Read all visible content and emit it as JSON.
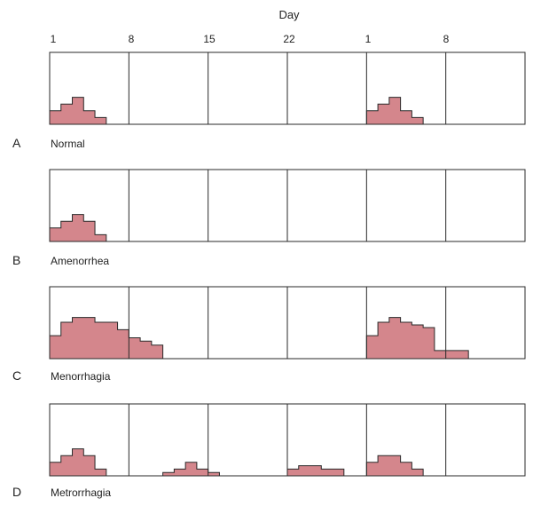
{
  "header": {
    "title": "Day",
    "ticks": [
      "1",
      "8",
      "15",
      "22",
      "1",
      "8"
    ]
  },
  "colors": {
    "fill": "#d4868c",
    "stroke": "#2a2a2a",
    "text": "#222222"
  },
  "units_per_week": 7,
  "panels": [
    {
      "letter": "A",
      "label": "Normal",
      "levels": [
        {
          "start": 0,
          "values": [
            2,
            3,
            4,
            2,
            1
          ]
        },
        {
          "start": 28,
          "values": [
            2,
            3,
            4,
            2,
            1
          ]
        }
      ]
    },
    {
      "letter": "B",
      "label": "Amenorrhea",
      "levels": [
        {
          "start": 0,
          "values": [
            2,
            3,
            4,
            3,
            1
          ]
        }
      ]
    },
    {
      "letter": "C",
      "label": "Menorrhagia",
      "levels": [
        {
          "start": 0,
          "values": [
            3.4,
            5.4,
            6.1,
            6.1,
            5.4,
            5.4,
            4.3,
            3.1,
            2.6,
            2.0
          ]
        },
        {
          "start": 28,
          "values": [
            3.4,
            5.4,
            6.1,
            5.4,
            5.0,
            4.6,
            1.2,
            1.2,
            1.2
          ]
        }
      ]
    },
    {
      "letter": "D",
      "label": "Metrorrhagia",
      "levels": [
        {
          "start": 0,
          "values": [
            2,
            3,
            4,
            3,
            1
          ]
        },
        {
          "start": 10,
          "values": [
            0.5,
            1,
            2,
            1,
            0.5
          ]
        },
        {
          "start": 21,
          "values": [
            1,
            1.5,
            1.5,
            1,
            1
          ]
        },
        {
          "start": 28,
          "values": [
            2,
            3,
            3,
            2,
            1
          ]
        }
      ]
    }
  ]
}
